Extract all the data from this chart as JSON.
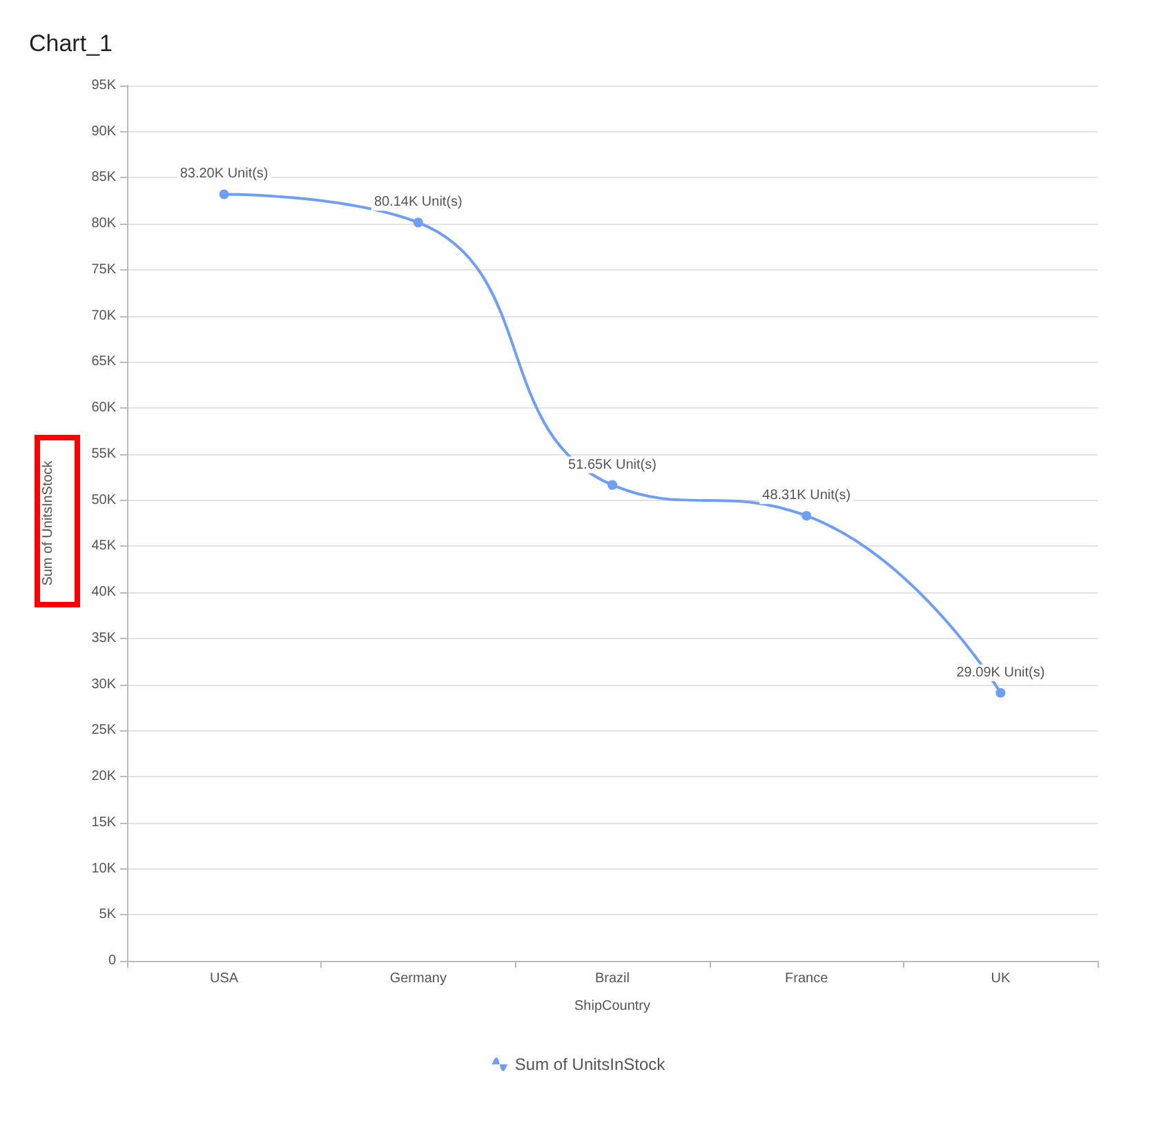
{
  "chart_data": {
    "type": "line",
    "title": "Chart_1",
    "xlabel": "ShipCountry",
    "ylabel": "Sum of UnitsInStock",
    "categories": [
      "USA",
      "Germany",
      "Brazil",
      "France",
      "UK"
    ],
    "series": [
      {
        "name": "Sum of UnitsInStock",
        "color": "#6f9ef8",
        "values": [
          83200,
          80140,
          51650,
          48310,
          29090
        ],
        "value_labels": [
          "83.20K Unit(s)",
          "80.14K Unit(s)",
          "51.65K Unit(s)",
          "48.31K Unit(s)",
          "29.09K Unit(s)"
        ]
      }
    ],
    "ylim": [
      0,
      95000
    ],
    "yticks": [
      0,
      {
        "value": 5000,
        "label": "5K"
      },
      {
        "value": 10000,
        "label": "10K"
      },
      {
        "value": 15000,
        "label": "15K"
      },
      {
        "value": 20000,
        "label": "20K"
      },
      {
        "value": 25000,
        "label": "25K"
      },
      {
        "value": 30000,
        "label": "30K"
      },
      {
        "value": 35000,
        "label": "35K"
      },
      {
        "value": 40000,
        "label": "40K"
      },
      {
        "value": 45000,
        "label": "45K"
      },
      {
        "value": 50000,
        "label": "50K"
      },
      {
        "value": 55000,
        "label": "55K"
      },
      {
        "value": 60000,
        "label": "60K"
      },
      {
        "value": 65000,
        "label": "65K"
      },
      {
        "value": 70000,
        "label": "70K"
      },
      {
        "value": 75000,
        "label": "75K"
      },
      {
        "value": 80000,
        "label": "80K"
      },
      {
        "value": 85000,
        "label": "85K"
      },
      {
        "value": 90000,
        "label": "90K"
      },
      {
        "value": 95000,
        "label": "95K"
      }
    ],
    "grid": "y",
    "legend": "bottom",
    "marker": "circle",
    "line_style": "solid"
  }
}
